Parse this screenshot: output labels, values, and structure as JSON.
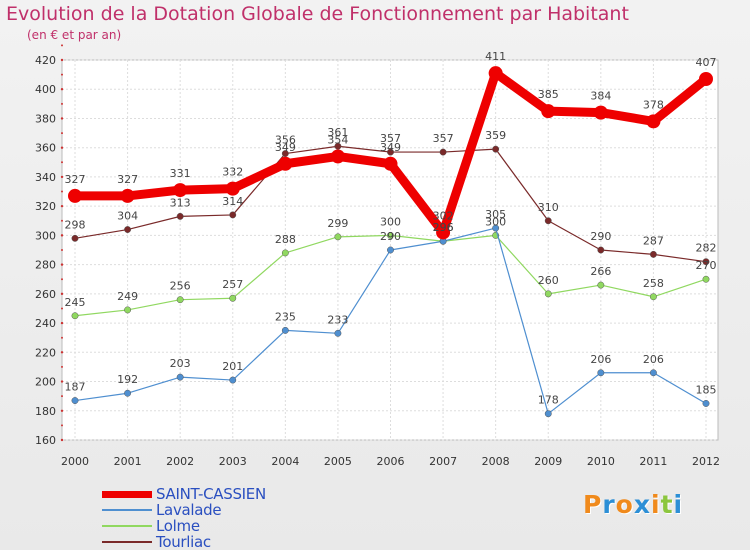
{
  "chart_data": {
    "type": "line",
    "title": "Evolution de la Dotation Globale de Fonctionnement par Habitant",
    "subtitle": "(en € et par an)",
    "x": [
      "2000",
      "2001",
      "2002",
      "2003",
      "2004",
      "2005",
      "2006",
      "2007",
      "2008",
      "2009",
      "2010",
      "2011",
      "2012"
    ],
    "ylim": [
      160,
      420
    ],
    "yticks": [
      160,
      180,
      200,
      220,
      240,
      260,
      280,
      300,
      320,
      340,
      360,
      380,
      400,
      420
    ],
    "grid": true,
    "legend_position": "bottom-left",
    "series": [
      {
        "name": "SAINT-CASSIEN",
        "color": "#ee0000",
        "values": [
          327,
          327,
          331,
          332,
          349,
          354,
          349,
          302,
          411,
          385,
          384,
          378,
          407
        ]
      },
      {
        "name": "Lavalade",
        "color": "#4f8fd0",
        "values": [
          187,
          192,
          203,
          201,
          235,
          233,
          290,
          296,
          305,
          178,
          206,
          206,
          185
        ]
      },
      {
        "name": "Lolme",
        "color": "#90d860",
        "values": [
          245,
          249,
          256,
          257,
          288,
          299,
          300,
          296,
          300,
          260,
          266,
          258,
          270
        ]
      },
      {
        "name": "Tourliac",
        "color": "#7a2a2a",
        "values": [
          298,
          304,
          313,
          314,
          356,
          361,
          357,
          357,
          359,
          310,
          290,
          287,
          282
        ]
      }
    ]
  },
  "logo": {
    "letters": [
      "P",
      "r",
      "o",
      "x",
      "i",
      "t",
      "i"
    ],
    "colors": [
      "#f08a1c",
      "#2c8fd6",
      "#f08a1c",
      "#2c8fd6",
      "#f08a1c",
      "#8cc63e",
      "#2c8fd6"
    ]
  }
}
